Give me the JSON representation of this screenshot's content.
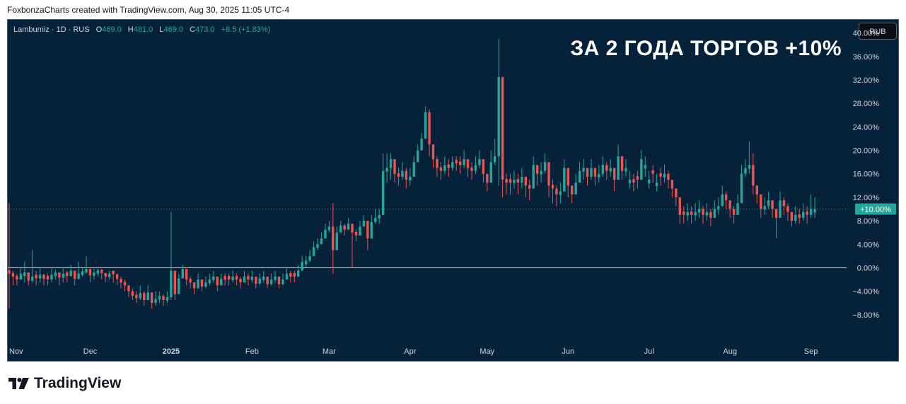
{
  "attribution": "FoxbonzaCharts created with TradingView.com, Aug 30, 2025 11:05 UTC-4",
  "legend": {
    "symbol": "Lambumiz · 1D · RUS",
    "open_label": "O",
    "open": "469.0",
    "high_label": "H",
    "high": "481.0",
    "low_label": "L",
    "low": "469.0",
    "close_label": "C",
    "close": "473.0",
    "change": "+8.5 (+1.83%)"
  },
  "currency_button": "RUB",
  "headline": "ЗА 2 ГОДА ТОРГОВ +10%",
  "current_value_label": "+10.00%",
  "footer_logo": "TradingView",
  "colors": {
    "background": "#06223a",
    "up": "#26a69a",
    "down": "#ef5350",
    "axis_text": "#d1d4dc",
    "badge": "#26a69a"
  },
  "chart_data": {
    "type": "candlestick",
    "title": "ЗА 2 ГОДА ТОРГОВ +10%",
    "y_unit": "percent change",
    "y_ticks": [
      "40.00%",
      "36.00%",
      "32.00%",
      "28.00%",
      "24.00%",
      "20.00%",
      "16.00%",
      "12.00%",
      "8.00%",
      "4.00%",
      "0.00%",
      "−4.00%",
      "−8.00%"
    ],
    "y_tick_values": [
      40,
      36,
      32,
      28,
      24,
      20,
      16,
      12,
      8,
      4,
      0,
      -4,
      -8
    ],
    "ylim": [
      -12,
      42
    ],
    "x_ticks": [
      {
        "label": "Nov",
        "index": 0
      },
      {
        "label": "Dec",
        "index": 21
      },
      {
        "label": "2025",
        "index": 42
      },
      {
        "label": "Feb",
        "index": 63
      },
      {
        "label": "Mar",
        "index": 83
      },
      {
        "label": "Apr",
        "index": 104
      },
      {
        "label": "May",
        "index": 124
      },
      {
        "label": "Jun",
        "index": 145
      },
      {
        "label": "Jul",
        "index": 166
      },
      {
        "label": "Aug",
        "index": 187
      },
      {
        "label": "Sep",
        "index": 208
      }
    ],
    "baseline": 0,
    "current_value": 10.0,
    "closes": [
      -1.0,
      -1.5,
      -2.0,
      -1.0,
      -0.8,
      -2.2,
      -1.5,
      -1.8,
      -1.2,
      -1.9,
      -2.0,
      -1.2,
      -0.8,
      -1.7,
      -1.0,
      -1.4,
      -0.5,
      -1.9,
      -1.0,
      -0.6,
      -0.2,
      -1.3,
      -0.8,
      -0.4,
      -0.9,
      -1.5,
      -1.0,
      -1.1,
      -1.9,
      -2.5,
      -3.0,
      -4.0,
      -4.8,
      -5.2,
      -4.3,
      -5.5,
      -4.2,
      -6.0,
      -5.3,
      -4.8,
      -5.5,
      -5.0,
      -0.5,
      -4.5,
      -1.8,
      -0.2,
      -2.0,
      -2.5,
      -3.5,
      -2.0,
      -3.2,
      -2.5,
      -2.0,
      -1.5,
      -3.0,
      -1.9,
      -2.0,
      -2.0,
      -1.5,
      -2.0,
      -2.5,
      -1.5,
      -2.0,
      -1.5,
      -2.7,
      -1.8,
      -1.5,
      -2.8,
      -2.0,
      -1.5,
      -2.8,
      -2.0,
      -1.0,
      -1.5,
      -1.5,
      -0.5,
      1.0,
      1.2,
      2.0,
      3.5,
      4.0,
      5.0,
      6.5,
      7.0,
      3.0,
      6.0,
      7.2,
      6.5,
      7.5,
      6.0,
      5.5,
      7.0,
      8.0,
      5.0,
      7.8,
      8.5,
      9.0,
      16.5,
      17.0,
      18.5,
      16.0,
      15.5,
      16.5,
      15.0,
      15.5,
      18.0,
      20.0,
      22.0,
      26.5,
      21.0,
      18.5,
      17.0,
      16.5,
      17.5,
      17.0,
      18.0,
      17.8,
      17.5,
      18.5,
      17.0,
      16.5,
      17.5,
      18.5,
      16.0,
      14.5,
      18.0,
      19.0,
      32.5,
      15.0,
      14.5,
      14.5,
      15.0,
      14.5,
      15.5,
      14.0,
      13.5,
      17.5,
      16.0,
      16.5,
      18.0,
      14.0,
      13.5,
      12.5,
      13.0,
      17.0,
      14.0,
      12.5,
      14.5,
      16.5,
      17.0,
      15.5,
      17.0,
      15.5,
      16.0,
      17.5,
      16.5,
      17.0,
      15.0,
      19.0,
      16.5,
      17.0,
      15.0,
      14.5,
      15.0,
      18.5,
      17.5,
      15.0,
      16.0,
      14.5,
      15.5,
      16.0,
      15.0,
      13.5,
      12.0,
      9.0,
      9.0,
      9.5,
      9.0,
      9.5,
      10.0,
      9.0,
      9.5,
      8.5,
      10.0,
      10.5,
      12.5,
      11.5,
      10.0,
      9.0,
      11.0,
      16.0,
      17.0,
      17.5,
      14.0,
      12.5,
      10.0,
      10.5,
      11.5,
      10.0,
      8.5,
      11.5,
      10.5,
      9.5,
      8.0,
      9.0,
      8.5,
      9.5,
      9.0,
      10.0,
      10.0
    ],
    "highs": [
      11,
      -0.5,
      -1,
      0,
      1,
      -1,
      3,
      -0.5,
      0,
      -1,
      -1,
      0,
      -0.3,
      -1,
      0,
      -0.5,
      0.5,
      -1,
      1,
      0,
      2,
      -0.5,
      0,
      0,
      -0.3,
      -1,
      -0.5,
      -0.5,
      -1,
      -1.5,
      -2,
      -3,
      -3.5,
      -4,
      -3,
      -4,
      -3,
      -5,
      -4,
      -4,
      -4.5,
      -4,
      9.5,
      -3,
      -1,
      0.5,
      -1,
      -1.5,
      -2.5,
      -1,
      -2,
      -1.5,
      -1,
      -0.5,
      -2,
      -1,
      -1,
      -1,
      -0.5,
      -1,
      -1.5,
      -0.5,
      -1,
      -0.5,
      -1.5,
      -1,
      -0.5,
      -1.5,
      -1,
      -0.5,
      -1.5,
      -1,
      0,
      -0.5,
      -0.5,
      0.5,
      2,
      2,
      3,
      4.5,
      5,
      6,
      7.5,
      8,
      11,
      7,
      8,
      7.5,
      8.5,
      7,
      6.5,
      8,
      9,
      7,
      9,
      10,
      10,
      19.5,
      19.5,
      19.5,
      18,
      17,
      18,
      17,
      17,
      19,
      21,
      23,
      27.5,
      27,
      20,
      19,
      18,
      19,
      18.5,
      19,
      19,
      19,
      20,
      18.5,
      18,
      19,
      20,
      18,
      16,
      20,
      22,
      39,
      16.5,
      16,
      16,
      16.5,
      16,
      17,
      15.5,
      15,
      19,
      17.5,
      18,
      19.5,
      15.5,
      15,
      14,
      14.5,
      18.5,
      15.5,
      14,
      16,
      18,
      18.5,
      17,
      18.5,
      17,
      17.5,
      19,
      18,
      18.5,
      16.5,
      21,
      18,
      18.5,
      16.5,
      16,
      16.5,
      20,
      19,
      16.5,
      17.5,
      16,
      17,
      17.5,
      16.5,
      15,
      13.5,
      10.5,
      10.5,
      11,
      10.5,
      11,
      11.5,
      10.5,
      11,
      10,
      11.5,
      12,
      14,
      13,
      11.5,
      10.5,
      12.5,
      17.5,
      18.5,
      21.5,
      19.5,
      14,
      11.5,
      12,
      13,
      11.5,
      10,
      13,
      12,
      11,
      9.5,
      10.5,
      10,
      11,
      10.5,
      12.5,
      12
    ],
    "lows": [
      -7,
      -3,
      -3,
      -2,
      -2.5,
      -3,
      -2.5,
      -3,
      -2.5,
      -3,
      -3,
      -2.5,
      -2,
      -3,
      -2.5,
      -2.5,
      -1.5,
      -3,
      -2,
      -1.5,
      -1,
      -2.5,
      -2,
      -1.5,
      -2,
      -2.5,
      -2,
      -2.5,
      -3,
      -3.5,
      -4,
      -5,
      -5.5,
      -6,
      -5.5,
      -6.5,
      -5.5,
      -7,
      -6.5,
      -6,
      -6.5,
      -6,
      -5.5,
      -5.5,
      -3,
      -1.5,
      -3,
      -3.5,
      -4.5,
      -3,
      -4,
      -3.5,
      -3,
      -2.5,
      -4,
      -3,
      -3,
      -3,
      -2.5,
      -3,
      -3.5,
      -2.5,
      -3,
      -2.5,
      -3.5,
      -3,
      -2.5,
      -3.5,
      -3,
      -2.5,
      -3.5,
      -3,
      -2,
      -2.5,
      -2.5,
      -1.5,
      0,
      0,
      1,
      2.5,
      3,
      4,
      5.5,
      6,
      -1,
      5,
      6,
      5.5,
      6.5,
      0,
      4.5,
      6,
      7,
      3,
      6.5,
      7.5,
      7.5,
      11,
      14.5,
      15,
      14.5,
      14,
      15,
      13.5,
      14,
      16,
      18,
      20,
      24,
      19,
      17,
      15.5,
      15,
      16,
      15.5,
      16.5,
      16.5,
      16,
      17,
      15.5,
      15,
      16,
      17,
      14.5,
      13,
      16.5,
      17.5,
      14,
      12,
      12.5,
      12.5,
      13.5,
      12.5,
      13.5,
      12,
      11.5,
      15.5,
      14,
      14.5,
      16,
      12,
      11,
      10.5,
      11,
      15,
      12,
      11,
      13,
      14.5,
      15,
      14,
      15,
      14,
      14.5,
      15.5,
      15,
      15.5,
      13,
      17,
      15,
      15.5,
      13.5,
      13,
      13.5,
      16.5,
      15.5,
      13.5,
      14.5,
      13,
      14,
      14.5,
      13.5,
      12,
      10.5,
      7.5,
      7.5,
      8,
      7.5,
      8,
      8.5,
      7.5,
      8,
      7,
      8.5,
      9,
      11,
      10,
      8.5,
      7.5,
      9.5,
      14.5,
      15.5,
      16,
      12.5,
      11,
      8.5,
      9,
      10,
      8.5,
      5,
      10,
      9,
      8,
      7,
      7.5,
      7.5,
      8,
      7.5,
      8.5,
      8.5
    ],
    "direction": [
      "down",
      "down",
      "down",
      "up",
      "up",
      "down",
      "up",
      "down",
      "up",
      "down",
      "down",
      "up",
      "up",
      "down",
      "up",
      "down",
      "up",
      "down",
      "up",
      "up",
      "up",
      "down",
      "up",
      "up",
      "down",
      "down",
      "up",
      "down",
      "down",
      "down",
      "down",
      "down",
      "down",
      "down",
      "up",
      "down",
      "up",
      "down",
      "up",
      "up",
      "down",
      "up",
      "up",
      "down",
      "up",
      "up",
      "down",
      "down",
      "down",
      "up",
      "down",
      "up",
      "up",
      "up",
      "down",
      "up",
      "down",
      "down",
      "up",
      "down",
      "down",
      "up",
      "down",
      "up",
      "down",
      "up",
      "up",
      "down",
      "up",
      "up",
      "down",
      "up",
      "up",
      "down",
      "down",
      "up",
      "up",
      "up",
      "up",
      "up",
      "up",
      "up",
      "up",
      "up",
      "down",
      "up",
      "up",
      "down",
      "up",
      "down",
      "down",
      "up",
      "up",
      "down",
      "up",
      "up",
      "up",
      "up",
      "up",
      "up",
      "down",
      "down",
      "up",
      "down",
      "up",
      "up",
      "up",
      "up",
      "up",
      "down",
      "down",
      "down",
      "down",
      "up",
      "down",
      "up",
      "down",
      "down",
      "up",
      "down",
      "down",
      "up",
      "up",
      "down",
      "down",
      "up",
      "up",
      "up",
      "down",
      "down",
      "down",
      "up",
      "down",
      "up",
      "down",
      "down",
      "up",
      "down",
      "up",
      "up",
      "down",
      "down",
      "down",
      "up",
      "up",
      "down",
      "down",
      "up",
      "up",
      "up",
      "down",
      "up",
      "down",
      "up",
      "up",
      "down",
      "up",
      "down",
      "up",
      "down",
      "up",
      "up",
      "down",
      "down",
      "up",
      "up",
      "up",
      "down",
      "up",
      "down",
      "up",
      "down",
      "down",
      "down",
      "down",
      "down",
      "up",
      "down",
      "up",
      "up",
      "down",
      "up",
      "down",
      "up",
      "up",
      "up",
      "down",
      "down",
      "down",
      "up",
      "up",
      "up",
      "up",
      "down",
      "down",
      "down",
      "up",
      "up",
      "down",
      "down",
      "up",
      "down",
      "down",
      "down",
      "up",
      "down",
      "up",
      "down",
      "up",
      "up"
    ]
  }
}
